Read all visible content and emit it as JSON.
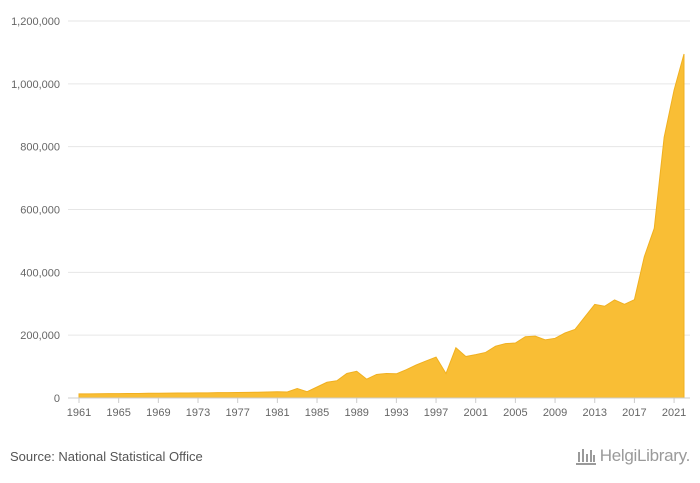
{
  "source": "Source: National Statistical Office",
  "brand": "HelgiLibrary.",
  "colors": {
    "area_fill": "#F9BE35",
    "area_stroke": "#F0B020",
    "grid": "#e6e6e6",
    "axis": "#cccccc",
    "text": "#666666"
  },
  "chart_data": {
    "type": "area",
    "title": "",
    "xlabel": "",
    "ylabel": "",
    "xlim": [
      1961,
      2022
    ],
    "ylim": [
      0,
      1200000
    ],
    "grid": true,
    "legend": "none",
    "yticks": [
      0,
      200000,
      400000,
      600000,
      800000,
      1000000,
      1200000
    ],
    "ytick_labels": [
      "0",
      "200,000",
      "400,000",
      "600,000",
      "800,000",
      "1,000,000",
      "1,200,000"
    ],
    "xticks": [
      1961,
      1965,
      1969,
      1973,
      1977,
      1981,
      1985,
      1989,
      1993,
      1997,
      2001,
      2005,
      2009,
      2013,
      2017,
      2021
    ],
    "xtick_labels": [
      "1961",
      "1965",
      "1969",
      "1973",
      "1977",
      "1981",
      "1985",
      "1989",
      "1993",
      "1997",
      "2001",
      "2005",
      "2009",
      "2013",
      "2017",
      "2021"
    ],
    "series": [
      {
        "x": [
          1961,
          1962,
          1963,
          1964,
          1965,
          1966,
          1967,
          1968,
          1969,
          1970,
          1971,
          1972,
          1973,
          1974,
          1975,
          1976,
          1977,
          1978,
          1979,
          1980,
          1981,
          1982,
          1983,
          1984,
          1985,
          1986,
          1987,
          1988,
          1989,
          1990,
          1991,
          1992,
          1993,
          1994,
          1995,
          1996,
          1997,
          1998,
          1999,
          2000,
          2001,
          2002,
          2003,
          2004,
          2005,
          2006,
          2007,
          2008,
          2009,
          2010,
          2011,
          2012,
          2013,
          2014,
          2015,
          2016,
          2017,
          2018,
          2019,
          2020,
          2021,
          2022
        ],
        "values": [
          13000,
          13000,
          13500,
          14000,
          14000,
          14500,
          14500,
          15000,
          15000,
          15500,
          16000,
          16000,
          16500,
          16500,
          17000,
          17000,
          17500,
          18000,
          18500,
          19000,
          20000,
          19000,
          30000,
          20000,
          35000,
          50000,
          55000,
          78000,
          85000,
          60000,
          75000,
          78000,
          77000,
          90000,
          105000,
          118000,
          130000,
          78000,
          160000,
          132000,
          138000,
          145000,
          165000,
          173000,
          175000,
          195000,
          197000,
          185000,
          190000,
          207000,
          218000,
          258000,
          298000,
          292000,
          312000,
          298000,
          313000,
          450000,
          540000,
          830000,
          980000,
          1095000
        ]
      }
    ]
  }
}
